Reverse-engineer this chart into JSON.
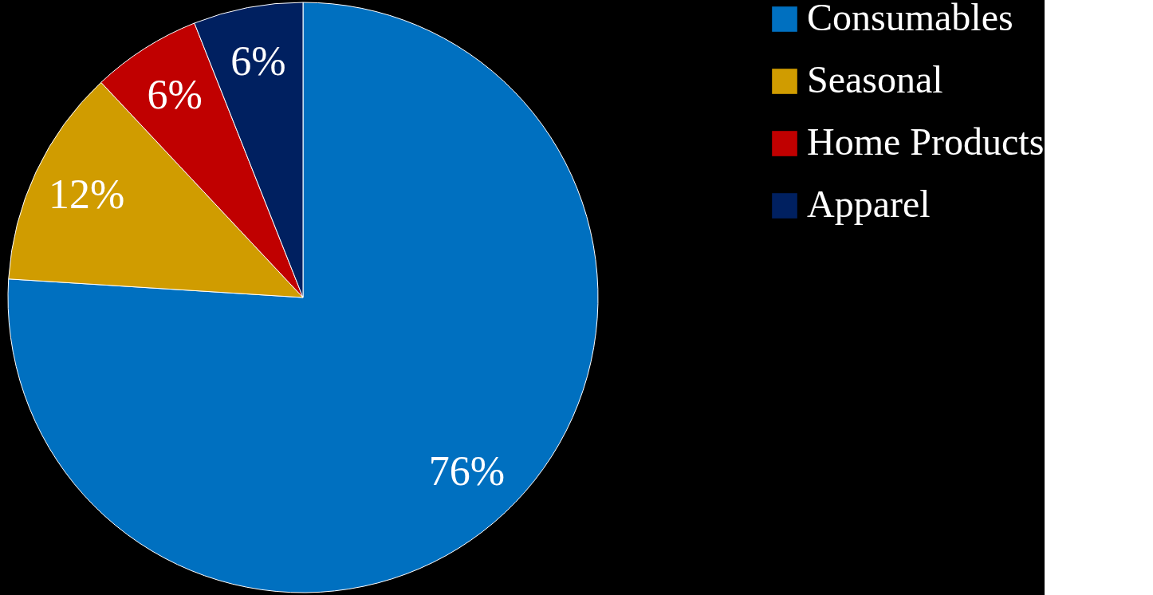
{
  "chart_data": {
    "type": "pie",
    "categories": [
      "Consumables",
      "Seasonal",
      "Home Products",
      "Apparel"
    ],
    "values": [
      76,
      12,
      6,
      6
    ],
    "colors": [
      "#0070c0",
      "#d09c00",
      "#c00000",
      "#002060"
    ],
    "value_labels": [
      "76%",
      "12%",
      "6%",
      "6%"
    ],
    "legend": "right"
  }
}
